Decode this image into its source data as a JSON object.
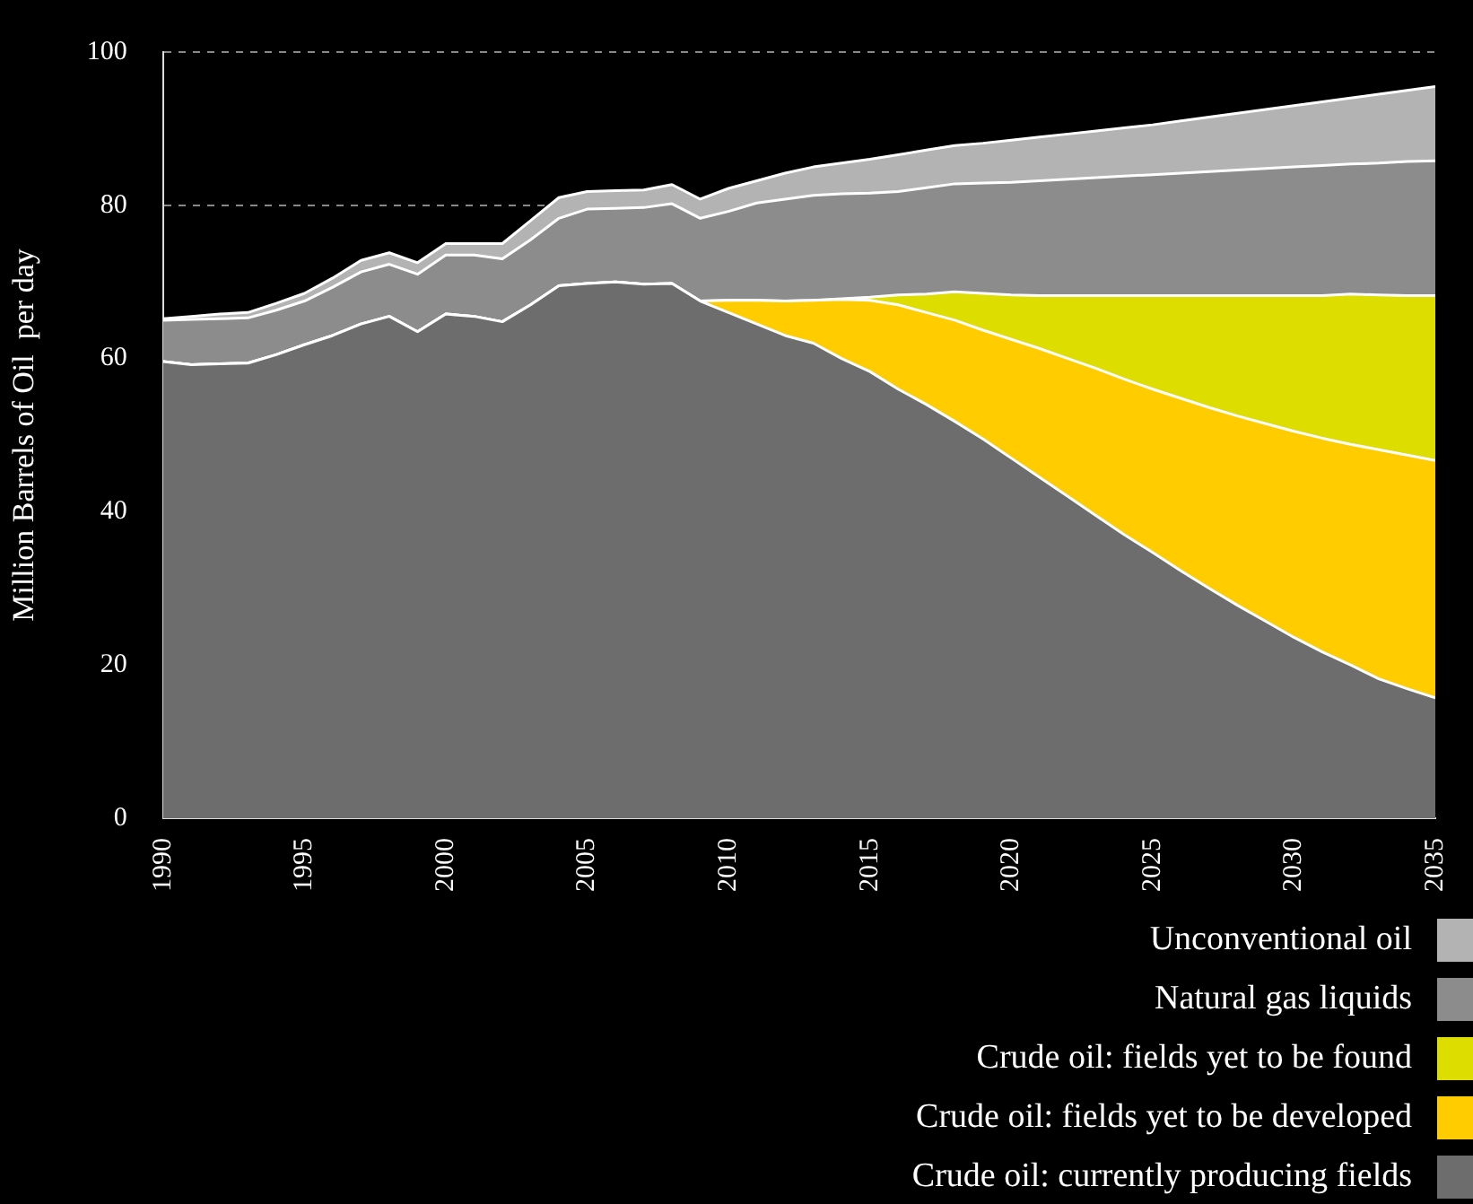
{
  "chart_data": {
    "type": "area",
    "stacked": true,
    "ylabel": "Million Barrels of Oil  per day",
    "x": [
      1990,
      1991,
      1992,
      1993,
      1994,
      1995,
      1996,
      1997,
      1998,
      1999,
      2000,
      2001,
      2002,
      2003,
      2004,
      2005,
      2006,
      2007,
      2008,
      2009,
      2010,
      2011,
      2012,
      2013,
      2014,
      2015,
      2016,
      2017,
      2018,
      2019,
      2020,
      2021,
      2022,
      2023,
      2024,
      2025,
      2026,
      2027,
      2028,
      2029,
      2030,
      2031,
      2032,
      2033,
      2034,
      2035
    ],
    "series": [
      {
        "name": "Crude oil: currently producing fields",
        "color": "#6d6d6d",
        "values": [
          59.6,
          59.2,
          59.3,
          59.4,
          60.5,
          61.8,
          63,
          64.5,
          65.5,
          63.5,
          65.8,
          65.5,
          64.8,
          67,
          69.5,
          69.8,
          70,
          69.7,
          69.8,
          67.5,
          66,
          64.5,
          63,
          62,
          60,
          58.3,
          56,
          54,
          51.8,
          49.5,
          47,
          44.5,
          42,
          39.5,
          37,
          34.7,
          32.3,
          30,
          27.8,
          25.7,
          23.6,
          21.7,
          20,
          18.2,
          16.9,
          15.7
        ]
      },
      {
        "name": "Crude oil: fields yet to be developed",
        "color": "#ffcc00",
        "values": [
          0,
          0,
          0,
          0,
          0,
          0,
          0,
          0,
          0,
          0,
          0,
          0,
          0,
          0,
          0,
          0,
          0,
          0,
          0,
          0,
          1.6,
          3.1,
          4.5,
          5.6,
          7.7,
          9.3,
          11,
          12,
          13.2,
          14.2,
          15.5,
          16.8,
          18,
          19.2,
          20.3,
          21.3,
          22.5,
          23.6,
          24.7,
          25.8,
          26.9,
          27.9,
          28.8,
          29.9,
          30.5,
          31
        ]
      },
      {
        "name": "Crude oil: fields yet to be found",
        "color": "#dddd00",
        "values": [
          0,
          0,
          0,
          0,
          0,
          0,
          0,
          0,
          0,
          0,
          0,
          0,
          0,
          0,
          0,
          0,
          0,
          0,
          0,
          0,
          0,
          0,
          0,
          0,
          0.1,
          0.4,
          1.3,
          2.4,
          3.7,
          4.8,
          5.8,
          6.9,
          8.2,
          9.5,
          10.9,
          12.2,
          13.4,
          14.6,
          15.7,
          16.7,
          17.7,
          18.6,
          19.6,
          20.2,
          20.8,
          21.5
        ]
      },
      {
        "name": "Natural gas liquids",
        "color": "#8c8c8c",
        "values": [
          5.4,
          5.9,
          5.9,
          5.9,
          5.8,
          5.7,
          6.3,
          6.8,
          6.8,
          7.5,
          7.7,
          8,
          8.2,
          8.5,
          8.8,
          9.7,
          9.6,
          10,
          10.4,
          10.8,
          11.6,
          12.7,
          13.3,
          13.7,
          13.7,
          13.6,
          13.5,
          13.9,
          14.1,
          14.4,
          14.7,
          15,
          15.2,
          15.4,
          15.6,
          15.8,
          16,
          16.2,
          16.4,
          16.6,
          16.8,
          17,
          17,
          17.2,
          17.5,
          17.6
        ]
      },
      {
        "name": "Unconventional oil",
        "color": "#b3b3b3",
        "values": [
          0.2,
          0.4,
          0.6,
          0.7,
          0.9,
          1,
          1.2,
          1.5,
          1.5,
          1.5,
          1.5,
          1.5,
          2,
          2.5,
          2.7,
          2.3,
          2.3,
          2.3,
          2.5,
          2.5,
          3,
          2.9,
          3.4,
          3.7,
          4,
          4.4,
          4.8,
          4.9,
          5,
          5.2,
          5.5,
          5.7,
          5.9,
          6.1,
          6.3,
          6.5,
          6.8,
          7.1,
          7.4,
          7.7,
          8,
          8.3,
          8.6,
          9,
          9.3,
          9.7
        ]
      }
    ],
    "xlim": [
      1990,
      2035
    ],
    "xticks": [
      1990,
      1995,
      2000,
      2005,
      2010,
      2015,
      2020,
      2025,
      2030,
      2035
    ],
    "ylim": [
      0,
      100
    ],
    "yticks": [
      0,
      20,
      40,
      60,
      80,
      100
    ],
    "grid": "y",
    "legend": "bottom right",
    "marker": "none"
  }
}
